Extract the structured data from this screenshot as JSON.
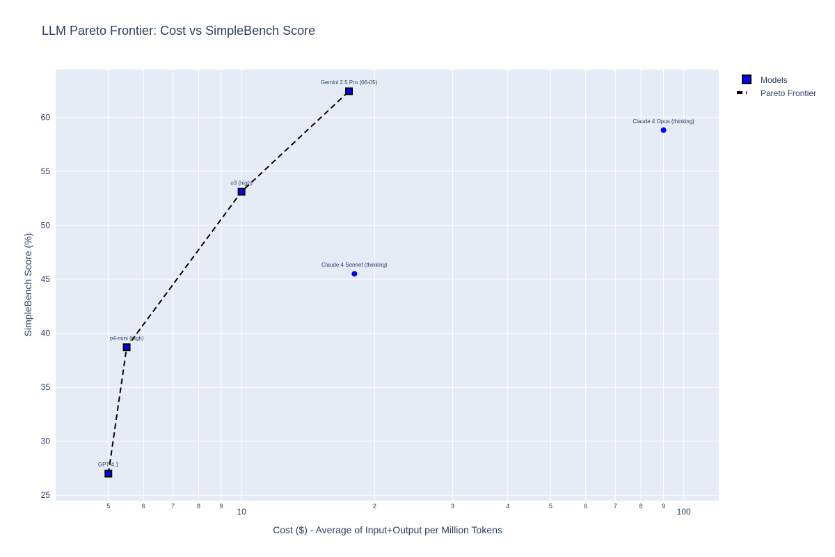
{
  "chart_data": {
    "type": "scatter",
    "title": "LLM Pareto Frontier: Cost vs SimpleBench Score",
    "xlabel": "Cost ($) - Average of Input+Output per Million Tokens",
    "ylabel": "SimpleBench Score (%)",
    "x_scale": "log",
    "xlim": [
      3.8,
      120
    ],
    "ylim": [
      24.5,
      64.4
    ],
    "grid": true,
    "x_ticks": [
      {
        "value": 5,
        "label": "5"
      },
      {
        "value": 6,
        "label": "6"
      },
      {
        "value": 7,
        "label": "7"
      },
      {
        "value": 8,
        "label": "8"
      },
      {
        "value": 9,
        "label": "9"
      },
      {
        "value": 10,
        "label": "10"
      },
      {
        "value": 20,
        "label": "2"
      },
      {
        "value": 30,
        "label": "3"
      },
      {
        "value": 40,
        "label": "4"
      },
      {
        "value": 50,
        "label": "5"
      },
      {
        "value": 60,
        "label": "6"
      },
      {
        "value": 70,
        "label": "7"
      },
      {
        "value": 80,
        "label": "8"
      },
      {
        "value": 90,
        "label": "9"
      },
      {
        "value": 100,
        "label": "100"
      }
    ],
    "y_ticks": [
      25,
      30,
      35,
      40,
      45,
      50,
      55,
      60
    ],
    "legend": {
      "placement": "top-right",
      "entries": [
        "Models",
        "Pareto Frontier"
      ]
    },
    "series": [
      {
        "name": "Models",
        "points": [
          {
            "label": "GPT-4.1",
            "x": 5.0,
            "y": 27.0,
            "frontier": true
          },
          {
            "label": "o4-mini (high)",
            "x": 5.5,
            "y": 38.7,
            "frontier": true
          },
          {
            "label": "o3 (high)",
            "x": 10.0,
            "y": 53.1,
            "frontier": true
          },
          {
            "label": "Gemini 2.5 Pro (06-05)",
            "x": 17.5,
            "y": 62.4,
            "frontier": true
          },
          {
            "label": "Claude 4 Sonnet (thinking)",
            "x": 18.0,
            "y": 45.5,
            "frontier": false
          },
          {
            "label": "Claude 4 Opus (thinking)",
            "x": 90.0,
            "y": 58.8,
            "frontier": false
          }
        ]
      },
      {
        "name": "Pareto Frontier",
        "x": [
          5.0,
          5.5,
          10.0,
          17.5
        ],
        "y": [
          27.0,
          38.7,
          53.1,
          62.4
        ]
      }
    ],
    "colors": {
      "plot_bg": "#e5ecf6",
      "grid": "#ffffff",
      "marker": "#0000ff",
      "frontier_line": "#000000",
      "text": "#2a3f5f"
    }
  }
}
